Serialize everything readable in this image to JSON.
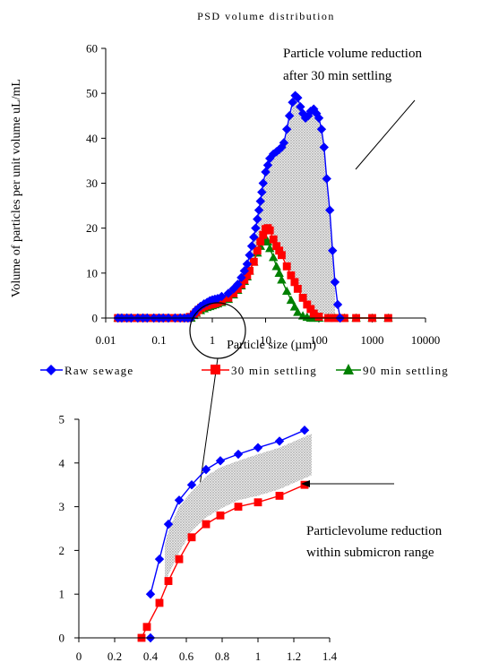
{
  "colors": {
    "raw": "#0000ff",
    "s30": "#ff0000",
    "s90": "#008000",
    "shade": "#c8c8c8"
  },
  "chart_data": [
    {
      "type": "line",
      "title": "PSD volume distribution",
      "xlabel": "Particle size (µm)",
      "ylabel": "Volume of particles per unit volume uL/mL",
      "xscale": "log",
      "xlim": [
        0.01,
        10000
      ],
      "ylim": [
        0,
        60
      ],
      "x_ticks": [
        "0.01",
        "0.1",
        "1",
        "10",
        "100",
        "1000",
        "10000"
      ],
      "y_ticks": [
        "0",
        "10",
        "20",
        "30",
        "40",
        "50",
        "60"
      ],
      "grid": false,
      "legend": {
        "position": "bottom",
        "entries": [
          "Raw sewage",
          "30 min settling",
          "90 min settling"
        ]
      },
      "series": [
        {
          "name": "Raw sewage",
          "marker": "diamond",
          "x": [
            0.017,
            0.02,
            0.025,
            0.03,
            0.04,
            0.05,
            0.06,
            0.08,
            0.1,
            0.12,
            0.15,
            0.2,
            0.25,
            0.3,
            0.35,
            0.4,
            0.45,
            0.5,
            0.6,
            0.7,
            0.8,
            0.9,
            1.0,
            1.12,
            1.26,
            1.5,
            2,
            2.5,
            3,
            3.5,
            4,
            4.5,
            5,
            5.5,
            6,
            6.5,
            7,
            7.5,
            8,
            8.5,
            9,
            10,
            11,
            12,
            14,
            16,
            18,
            20,
            22,
            25,
            28,
            32,
            36,
            40,
            45,
            50,
            56,
            63,
            70,
            80,
            90,
            100,
            112,
            125,
            140,
            160,
            180,
            200,
            225,
            250
          ],
          "y": [
            0,
            0,
            0,
            0,
            0,
            0,
            0,
            0,
            0,
            0,
            0,
            0,
            0,
            0,
            0,
            0,
            1.0,
            1.8,
            2.6,
            3.15,
            3.5,
            3.85,
            4.05,
            4.2,
            4.35,
            4.8,
            5.5,
            6.5,
            7.5,
            9,
            10.5,
            12,
            14,
            16,
            18,
            20,
            22,
            24,
            26,
            28,
            30,
            32.5,
            34,
            35.5,
            36.5,
            37,
            37.5,
            38,
            39,
            42,
            45,
            48,
            49.5,
            49,
            47,
            45.5,
            44.5,
            45,
            46,
            46.5,
            45.5,
            44.5,
            42,
            38,
            31,
            24,
            15,
            8,
            3,
            0
          ]
        },
        {
          "name": "30 min settling",
          "marker": "square",
          "x": [
            0.017,
            0.02,
            0.025,
            0.03,
            0.04,
            0.05,
            0.06,
            0.08,
            0.1,
            0.12,
            0.15,
            0.2,
            0.25,
            0.3,
            0.35,
            0.38,
            0.45,
            0.5,
            0.55,
            0.62,
            0.7,
            0.8,
            0.9,
            1.0,
            1.12,
            1.26,
            1.5,
            2,
            2.5,
            3,
            3.5,
            4,
            4.5,
            5,
            6,
            7,
            8,
            9,
            10,
            11,
            12,
            14,
            16,
            18,
            20,
            25,
            30,
            35,
            40,
            50,
            60,
            70,
            80,
            100,
            150,
            200,
            300,
            500,
            1000,
            2000
          ],
          "y": [
            0,
            0,
            0,
            0,
            0,
            0,
            0,
            0,
            0,
            0,
            0,
            0,
            0,
            0,
            0,
            0.25,
            0.8,
            1.3,
            1.8,
            2.3,
            2.6,
            2.8,
            3.0,
            3.1,
            3.25,
            3.45,
            3.8,
            4.5,
            5.5,
            6.5,
            7.5,
            8.5,
            9.5,
            10.5,
            12.5,
            15,
            17,
            18.5,
            19.8,
            20,
            19.5,
            17.5,
            16,
            15,
            14,
            11.5,
            9.5,
            8,
            6.5,
            4.5,
            3,
            2,
            1,
            0.3,
            0,
            0,
            0,
            0,
            0,
            0
          ]
        },
        {
          "name": "90 min settling",
          "marker": "triangle",
          "x": [
            0.017,
            0.02,
            0.025,
            0.03,
            0.04,
            0.05,
            0.06,
            0.08,
            0.1,
            0.12,
            0.15,
            0.2,
            0.25,
            0.3,
            0.35,
            0.4,
            0.45,
            0.5,
            0.6,
            0.7,
            0.8,
            0.9,
            1.0,
            1.12,
            1.26,
            1.5,
            2,
            2.5,
            3,
            3.5,
            4,
            4.5,
            5,
            6,
            7,
            8,
            9,
            10,
            11,
            12,
            14,
            16,
            18,
            20,
            25,
            30,
            35,
            40,
            50,
            60,
            70,
            80,
            100,
            150,
            200,
            300,
            500,
            1000,
            2000
          ],
          "y": [
            0,
            0,
            0,
            0,
            0,
            0,
            0,
            0,
            0,
            0,
            0,
            0,
            0,
            0,
            0,
            0,
            0.6,
            1.1,
            1.7,
            2.1,
            2.4,
            2.6,
            2.8,
            3.0,
            3.2,
            3.5,
            4.2,
            5.2,
            6.2,
            7.2,
            8.2,
            9.2,
            10.5,
            12.5,
            14.5,
            16,
            17,
            17.8,
            17,
            15.5,
            13.5,
            11.5,
            10,
            8.5,
            6,
            4,
            2.5,
            1.3,
            0.5,
            0.2,
            0,
            0,
            0,
            0,
            0,
            0,
            0,
            0,
            0
          ]
        }
      ]
    },
    {
      "type": "line",
      "title": "",
      "xlim": [
        0,
        1.4
      ],
      "ylim": [
        0,
        5
      ],
      "x_ticks": [
        "0",
        "0.2",
        "0.4",
        "0.6",
        "0.8",
        "1",
        "1.2",
        "1.4"
      ],
      "y_ticks": [
        "0",
        "1",
        "2",
        "3",
        "4",
        "5"
      ],
      "grid": false,
      "series": [
        {
          "name": "Raw sewage",
          "marker": "diamond",
          "x": [
            0.4,
            0.45,
            0.5,
            0.56,
            0.63,
            0.71,
            0.79,
            0.89,
            1.0,
            1.12,
            1.26
          ],
          "y": [
            1.0,
            1.8,
            2.6,
            3.15,
            3.5,
            3.85,
            4.05,
            4.2,
            4.35,
            4.5,
            4.75
          ]
        },
        {
          "name": "30 min settling",
          "marker": "square",
          "x": [
            0.35,
            0.38,
            0.45,
            0.5,
            0.56,
            0.63,
            0.71,
            0.79,
            0.89,
            1.0,
            1.12,
            1.26
          ],
          "y": [
            0,
            0.25,
            0.8,
            1.3,
            1.8,
            2.3,
            2.6,
            2.8,
            3.0,
            3.1,
            3.25,
            3.5
          ]
        }
      ],
      "extra_markers": [
        {
          "x": 0.4,
          "y": 0,
          "marker": "diamond",
          "series": "Raw sewage"
        }
      ]
    }
  ],
  "annotations": {
    "top_line1": "Particle volume reduction",
    "top_line2": "after 30 min settling",
    "bottom_line1": "Particlevolume reduction",
    "bottom_line2": "within submicron range"
  }
}
